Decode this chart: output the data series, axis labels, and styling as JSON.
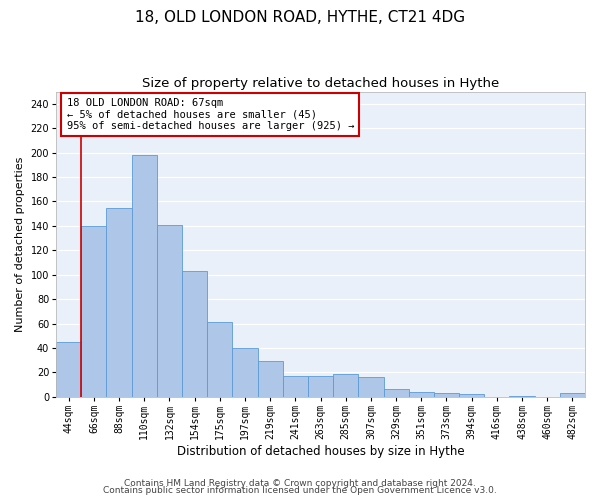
{
  "title1": "18, OLD LONDON ROAD, HYTHE, CT21 4DG",
  "title2": "Size of property relative to detached houses in Hythe",
  "xlabel": "Distribution of detached houses by size in Hythe",
  "ylabel": "Number of detached properties",
  "categories": [
    "44sqm",
    "66sqm",
    "88sqm",
    "110sqm",
    "132sqm",
    "154sqm",
    "175sqm",
    "197sqm",
    "219sqm",
    "241sqm",
    "263sqm",
    "285sqm",
    "307sqm",
    "329sqm",
    "351sqm",
    "373sqm",
    "394sqm",
    "416sqm",
    "438sqm",
    "460sqm",
    "482sqm"
  ],
  "values": [
    45,
    140,
    155,
    198,
    141,
    103,
    61,
    40,
    29,
    17,
    17,
    19,
    16,
    6,
    4,
    3,
    2,
    0,
    1,
    0,
    3
  ],
  "bar_color": "#aec6e8",
  "bar_edge_color": "#5b9bd5",
  "annotation_line1": "18 OLD LONDON ROAD: 67sqm",
  "annotation_line2": "← 5% of detached houses are smaller (45)",
  "annotation_line3": "95% of semi-detached houses are larger (925) →",
  "annotation_box_color": "#ffffff",
  "annotation_box_edge": "#cc0000",
  "marker_line_color": "#cc0000",
  "ylim": [
    0,
    250
  ],
  "yticks": [
    0,
    20,
    40,
    60,
    80,
    100,
    120,
    140,
    160,
    180,
    200,
    220,
    240
  ],
  "footer1": "Contains HM Land Registry data © Crown copyright and database right 2024.",
  "footer2": "Contains public sector information licensed under the Open Government Licence v3.0.",
  "bg_color": "#eaf0f9",
  "grid_color": "#ffffff",
  "title1_fontsize": 11,
  "title2_fontsize": 9.5,
  "xlabel_fontsize": 8.5,
  "ylabel_fontsize": 8,
  "tick_fontsize": 7,
  "annotation_fontsize": 7.5,
  "footer_fontsize": 6.5
}
